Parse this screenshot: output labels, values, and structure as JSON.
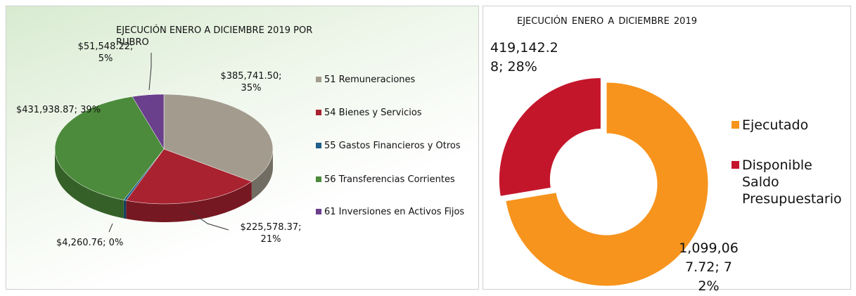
{
  "chart_data": [
    {
      "type": "pie3d",
      "title": "EJECUCIÓN ENERO A DICIEMBRE 2019 POR RUBRO",
      "categories": [
        "51 Remuneraciones",
        "54 Bienes y Servicios",
        "55 Gastos Financieros y Otros",
        "56 Transferencias Corrientes",
        "61 Inversiones en Activos Fijos"
      ],
      "values": [
        385741.5,
        225578.37,
        4260.76,
        431938.87,
        51548.22
      ],
      "value_labels": [
        "$385,741.50; 35%",
        "$225,578.37; 21%",
        "$4,260.76; 0%",
        "$431,938.87; 39%",
        "$51,548.22; 5%"
      ],
      "colors": [
        "#a39c8e",
        "#a8222f",
        "#1f5f8b",
        "#4b8b3b",
        "#6a3f8c"
      ]
    },
    {
      "type": "donut",
      "title": "EJECUCIÓN ENERO A DICIEMBRE 2019",
      "categories": [
        "Ejecutado",
        "Disponible Saldo Presupuestario"
      ],
      "values": [
        1099067.72,
        419142.28
      ],
      "value_labels": [
        "1,099,067.72; 72%",
        "419,142.28; 28%"
      ],
      "colors": [
        "#f7941d",
        "#c4162b"
      ]
    }
  ]
}
